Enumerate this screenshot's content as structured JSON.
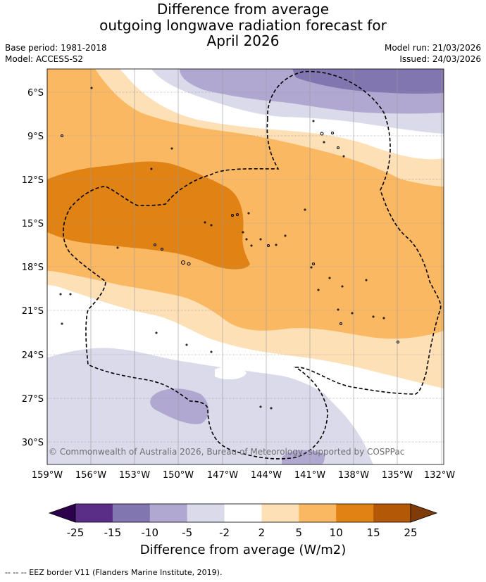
{
  "title": {
    "line1": "Difference from average",
    "line2": "outgoing longwave radiation forecast for",
    "line3": "April 2026"
  },
  "meta": {
    "base_period": "Base period: 1981-2018",
    "model": "Model: ACCESS-S2",
    "model_run": "Model run: 21/03/2026",
    "issued": "Issued: 24/03/2026"
  },
  "map": {
    "lat_ticks": [
      "6°S",
      "9°S",
      "12°S",
      "15°S",
      "18°S",
      "21°S",
      "24°S",
      "27°S",
      "30°S"
    ],
    "lon_ticks": [
      "159°W",
      "156°W",
      "153°W",
      "150°W",
      "147°W",
      "144°W",
      "141°W",
      "138°W",
      "135°W",
      "132°W"
    ],
    "credit": "© Commonwealth of Australia 2026, Bureau of Meteorology, supported by COSPPac"
  },
  "legend": {
    "title": "Difference from average (W/m2)",
    "labels": [
      "-25",
      "-15",
      "-10",
      "-5",
      "-2",
      "2",
      "5",
      "10",
      "15",
      "25"
    ],
    "colors": [
      "#5a2d87",
      "#8176b0",
      "#b1a8d2",
      "#dadaea",
      "#ffffff",
      "#fee0b6",
      "#fbb863",
      "#e08214",
      "#b35806"
    ],
    "under_color": "#2d004b",
    "over_color": "#7f3b08"
  },
  "footer": {
    "eez_note": "--  --  -- EEZ border V11 (Flanders Marine Institute, 2019)."
  }
}
